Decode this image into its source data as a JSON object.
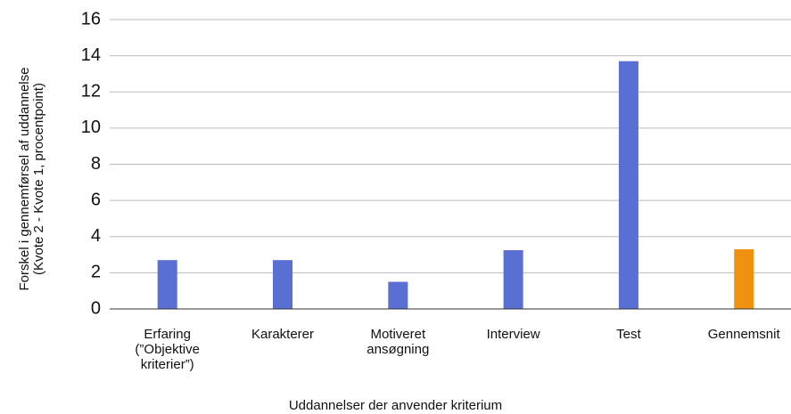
{
  "chart_data": {
    "type": "bar",
    "categories": [
      "Erfaring\n(”Objektive\nkriterier”)",
      "Karakterer",
      "Motiveret\nansøgning",
      "Interview",
      "Test",
      "Gennemsnit"
    ],
    "values": [
      2.7,
      2.7,
      1.5,
      3.25,
      13.7,
      3.3
    ],
    "colors": [
      "#5a6fd4",
      "#5a6fd4",
      "#5a6fd4",
      "#5a6fd4",
      "#5a6fd4",
      "#f0920f"
    ],
    "ylim": [
      0,
      16
    ],
    "yticks": [
      0,
      2,
      4,
      6,
      8,
      10,
      12,
      14,
      16
    ],
    "grid": true,
    "y_label": "Forskel i gennemførsel af uddannelse\n(Kvote 2 - Kvote 1, procentpoint)",
    "x_label": "Uddannelser der anvender kriterium"
  }
}
